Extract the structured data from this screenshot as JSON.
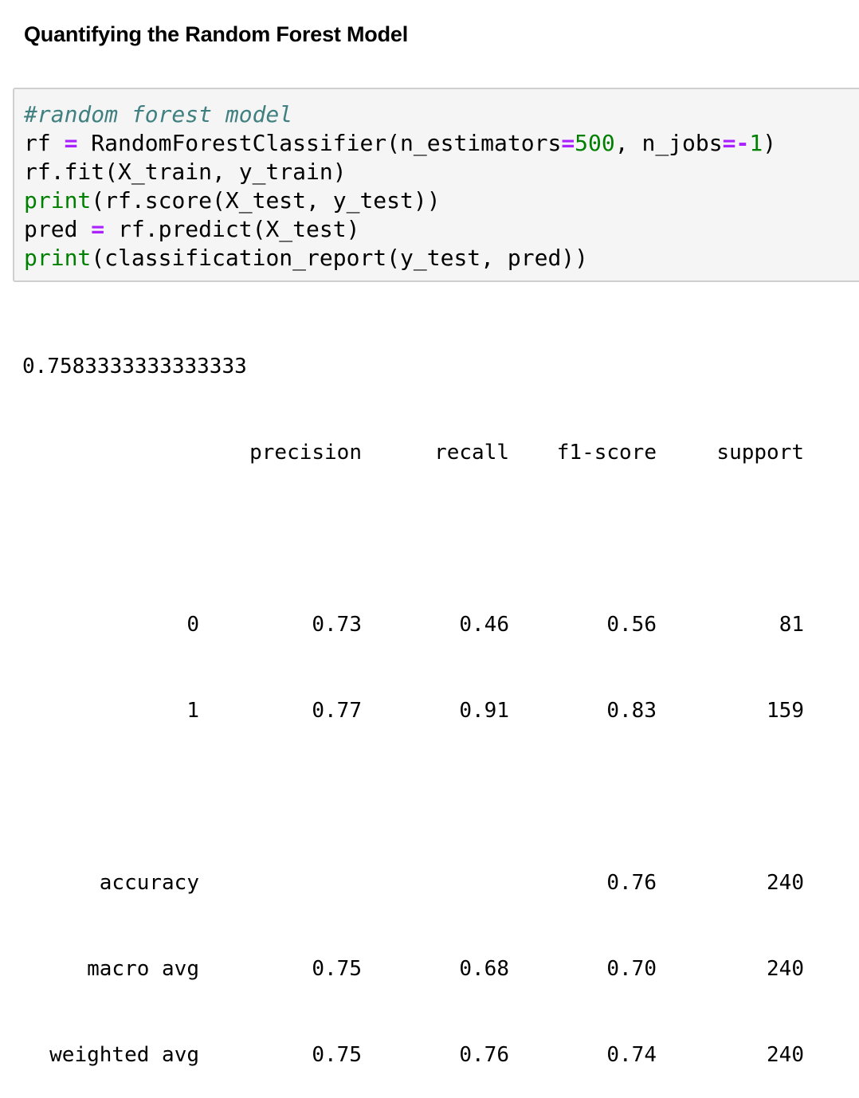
{
  "title": "Quantifying the Random Forest Model",
  "code": {
    "comment": "#random forest model",
    "line2": {
      "lhs": "rf ",
      "eq": "=",
      "call_open": " RandomForestClassifier(n_estimators",
      "eq2": "=",
      "val1": "500",
      "mid": ", n_jobs",
      "eq3": "=-",
      "val2": "1",
      "close": ")"
    },
    "line3": "rf.fit(X_train, y_train)",
    "line4": {
      "builtin": "print",
      "rest": "(rf.score(X_test, y_test))"
    },
    "line5": {
      "lhs": "pred ",
      "eq": "=",
      "rest": " rf.predict(X_test)"
    },
    "line6": {
      "builtin": "print",
      "rest": "(classification_report(y_test, pred))"
    }
  },
  "output": {
    "score": "0.7583333333333333",
    "headers": [
      "",
      "precision",
      "recall",
      "f1-score",
      "support"
    ],
    "rows": [
      [
        "0",
        "0.73",
        "0.46",
        "0.56",
        "81"
      ],
      [
        "1",
        "0.77",
        "0.91",
        "0.83",
        "159"
      ],
      [
        "",
        "",
        "",
        "",
        ""
      ],
      [
        "accuracy",
        "",
        "",
        "0.76",
        "240"
      ],
      [
        "macro avg",
        "0.75",
        "0.68",
        "0.70",
        "240"
      ],
      [
        "weighted avg",
        "0.75",
        "0.76",
        "0.74",
        "240"
      ]
    ]
  }
}
